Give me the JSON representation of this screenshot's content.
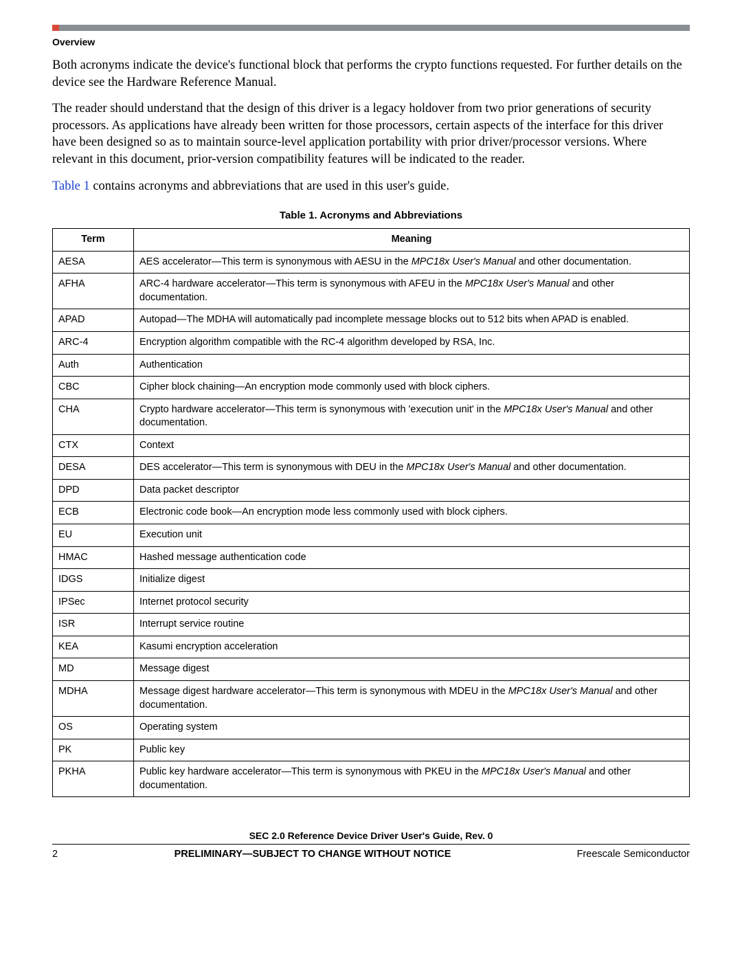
{
  "header": {
    "section_label": "Overview"
  },
  "paragraphs": {
    "p1": "Both acronyms indicate the device's functional block that performs the crypto functions requested. For further details on the device see the Hardware Reference Manual.",
    "p2": "The reader should understand that the design of this driver is a legacy holdover from two prior generations of security processors. As applications have already been written for those processors, certain aspects of the interface for this driver have been designed so as to maintain source-level application portability with prior driver/processor versions. Where relevant in this document, prior-version compatibility features will be indicated to the reader.",
    "p3_xref": "Table 1",
    "p3_rest": " contains acronyms and abbreviations that are used in this user's guide."
  },
  "table": {
    "caption": "Table 1. Acronyms and Abbreviations",
    "head_term": "Term",
    "head_meaning": "Meaning",
    "r0_term": "AESA",
    "r0_a": "AES accelerator—This term is synonymous with AESU in the ",
    "r0_i": "MPC18x User's Manual",
    "r0_b": " and other documentation.",
    "r1_term": "AFHA",
    "r1_a": "ARC-4 hardware accelerator—This term is synonymous with AFEU in the ",
    "r1_i": "MPC18x User's Manual",
    "r1_b": " and other documentation.",
    "r2_term": "APAD",
    "r2_a": "Autopad—The MDHA will automatically pad incomplete message blocks out to 512 bits when APAD is enabled.",
    "r3_term": "ARC-4",
    "r3_a": "Encryption algorithm compatible with the RC-4 algorithm developed by RSA, Inc.",
    "r4_term": "Auth",
    "r4_a": "Authentication",
    "r5_term": "CBC",
    "r5_a": "Cipher block chaining—An encryption mode commonly used with block ciphers.",
    "r6_term": "CHA",
    "r6_a": "Crypto hardware accelerator—This term is synonymous with 'execution unit' in the ",
    "r6_i": "MPC18x User's Manual",
    "r6_b": " and other documentation.",
    "r7_term": "CTX",
    "r7_a": "Context",
    "r8_term": "DESA",
    "r8_a": "DES accelerator—This term is synonymous with DEU in the ",
    "r8_i": "MPC18x User's Manual",
    "r8_b": " and other documentation.",
    "r9_term": "DPD",
    "r9_a": "Data packet descriptor",
    "r10_term": "ECB",
    "r10_a": "Electronic code book—An encryption mode less commonly used with block ciphers.",
    "r11_term": "EU",
    "r11_a": "Execution unit",
    "r12_term": "HMAC",
    "r12_a": "Hashed message authentication code",
    "r13_term": "IDGS",
    "r13_a": "Initialize digest",
    "r14_term": "IPSec",
    "r14_a": "Internet protocol security",
    "r15_term": "ISR",
    "r15_a": "Interrupt service routine",
    "r16_term": "KEA",
    "r16_a": "Kasumi encryption acceleration",
    "r17_term": "MD",
    "r17_a": "Message digest",
    "r18_term": "MDHA",
    "r18_a": "Message digest hardware accelerator—This term is synonymous with MDEU in the ",
    "r18_i": "MPC18x User's Manual",
    "r18_b": " and other documentation.",
    "r19_term": "OS",
    "r19_a": "Operating system",
    "r20_term": "PK",
    "r20_a": "Public key",
    "r21_term": "PKHA",
    "r21_a": "Public key hardware accelerator—This term is synonymous with PKEU in the ",
    "r21_i": "MPC18x User's Manual",
    "r21_b": " and other documentation."
  },
  "footer": {
    "doc_title": "SEC 2.0 Reference Device Driver User's Guide, Rev. 0",
    "page_number": "2",
    "preliminary": "PRELIMINARY—SUBJECT TO CHANGE WITHOUT NOTICE",
    "company": "Freescale Semiconductor"
  }
}
